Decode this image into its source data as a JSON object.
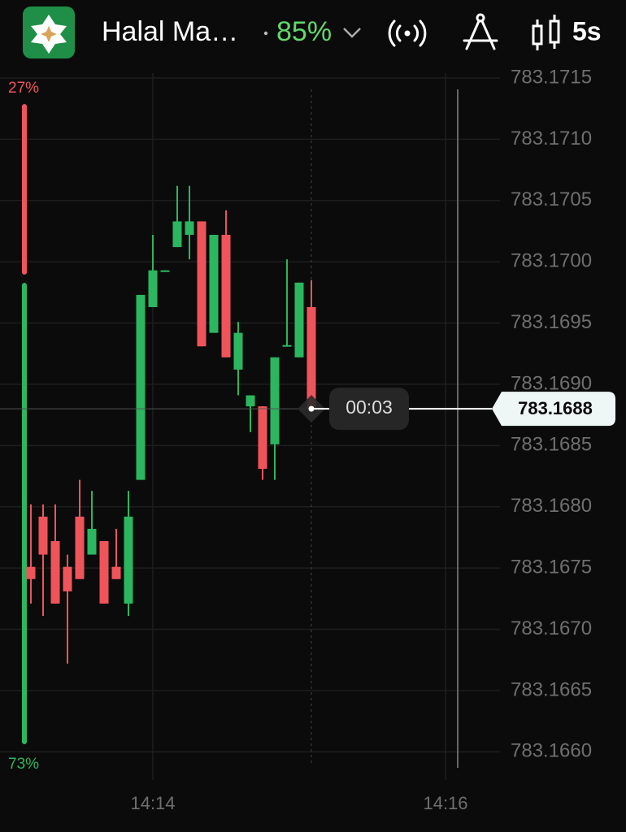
{
  "header": {
    "asset": "Halal Ma…",
    "payout": "85%",
    "timeframe": "5s"
  },
  "sentiment": {
    "values": [
      27,
      73
    ],
    "value_labels": [
      "27%",
      "73%"
    ],
    "colors": [
      "#f0545b",
      "#2bb65f"
    ]
  },
  "timer": "00:03",
  "chart_data": {
    "type": "candlestick",
    "categories": [
      null,
      null,
      null,
      null,
      null,
      null,
      null,
      null,
      null,
      null,
      "14:14",
      null,
      null,
      null,
      null,
      null,
      null,
      null,
      null,
      null,
      null,
      null,
      null,
      null,
      null,
      null,
      null,
      null,
      null,
      null,
      null,
      null,
      null,
      null,
      "14:16"
    ],
    "open": [
      783.16751,
      783.16792,
      783.16772,
      783.16751,
      783.16792,
      783.16761,
      783.16772,
      783.16751,
      783.16721,
      783.16822,
      783.16963,
      783.16992,
      783.17012,
      783.17022,
      783.17033,
      783.16942,
      783.17022,
      783.16912,
      783.16882,
      783.16882,
      783.16851,
      783.16931,
      783.16922,
      783.16963,
      null,
      null,
      null,
      null,
      null,
      null,
      null,
      null,
      null,
      null,
      null
    ],
    "high": [
      783.16802,
      783.16802,
      783.16802,
      783.16761,
      783.16822,
      783.16813,
      783.16772,
      783.16782,
      783.16813,
      783.16973,
      783.17022,
      783.16993,
      783.17062,
      783.17062,
      783.17033,
      783.17022,
      783.17042,
      783.16951,
      783.16891,
      783.16882,
      783.16922,
      783.17002,
      783.16983,
      783.16985,
      null,
      null,
      null,
      null,
      null,
      null,
      null,
      null,
      null,
      null,
      null
    ],
    "low": [
      783.16721,
      783.16711,
      783.16721,
      783.16672,
      783.16741,
      783.16761,
      783.16721,
      783.16741,
      783.16711,
      783.16822,
      783.16963,
      783.16992,
      783.17012,
      783.17002,
      783.16931,
      783.16942,
      783.16922,
      783.16891,
      783.16861,
      783.16822,
      783.16822,
      783.16931,
      783.16922,
      783.1688,
      null,
      null,
      null,
      null,
      null,
      null,
      null,
      null,
      null,
      null,
      null
    ],
    "close": [
      783.16741,
      783.16761,
      783.16721,
      783.16731,
      783.16741,
      783.16782,
      783.16721,
      783.16741,
      783.16792,
      783.16973,
      783.16993,
      783.16993,
      783.17033,
      783.17033,
      783.16931,
      783.17022,
      783.16922,
      783.16942,
      783.16891,
      783.16831,
      783.16922,
      783.16932,
      783.16983,
      783.1688,
      null,
      null,
      null,
      null,
      null,
      null,
      null,
      null,
      null,
      null,
      null
    ],
    "up_color": "#2bb65f",
    "down_color": "#f0545b",
    "current_price": 783.1688,
    "ylim": [
      783.16577,
      783.17154
    ],
    "yticks": [
      {
        "value": 783.166,
        "label": "783.1660"
      },
      783.1665,
      {
        "value": 783.167,
        "label": "783.1670"
      },
      783.1675,
      {
        "value": 783.168,
        "label": "783.1680"
      },
      783.1685,
      {
        "value": 783.169,
        "label": "783.1690"
      },
      783.1695,
      {
        "value": 783.17,
        "label": "783.1700"
      },
      783.1705,
      {
        "value": 783.171,
        "label": "783.1710"
      },
      783.1715
    ],
    "grid": true
  }
}
